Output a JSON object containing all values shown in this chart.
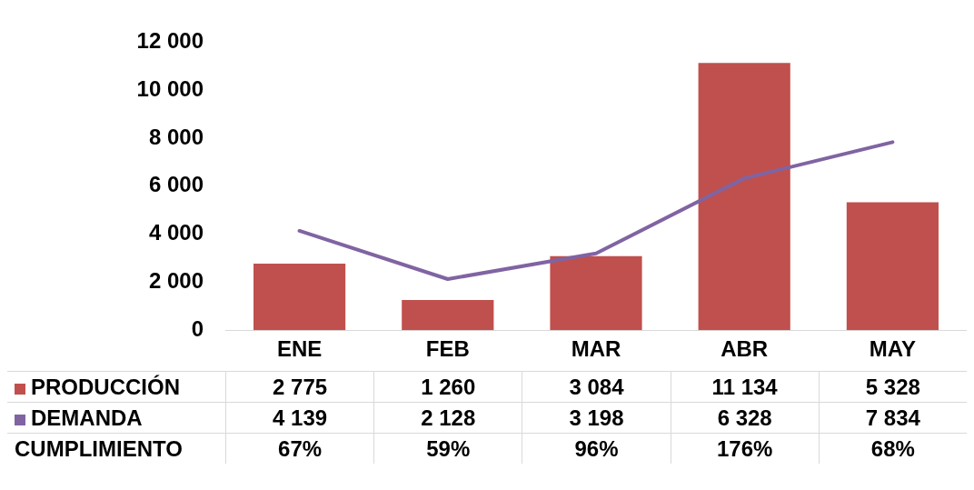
{
  "chart_data": {
    "type": "bar",
    "categories": [
      "ENE",
      "FEB",
      "MAR",
      "ABR",
      "MAY"
    ],
    "series": [
      {
        "name": "PRODUCCIÓN",
        "color": "#c0504d",
        "values": [
          2775,
          1260,
          3084,
          11134,
          5328
        ],
        "value_labels": [
          "2 775",
          "1 260",
          "3 084",
          "11 134",
          "5 328"
        ]
      },
      {
        "name": "DEMANDA",
        "type": "line",
        "color": "#8064a2",
        "values": [
          4139,
          2128,
          3198,
          6328,
          7834
        ],
        "value_labels": [
          "4 139",
          "2 128",
          "3 198",
          "6 328",
          "7 834"
        ]
      }
    ],
    "ylim": [
      0,
      12000
    ],
    "yticks": [
      {
        "value": 0,
        "label": "0"
      },
      {
        "value": 2000,
        "label": "2 000"
      },
      {
        "value": 4000,
        "label": "4 000"
      },
      {
        "value": 6000,
        "label": "6 000"
      },
      {
        "value": 8000,
        "label": "8 000"
      },
      {
        "value": 10000,
        "label": "10 000"
      },
      {
        "value": 12000,
        "label": "12 000"
      }
    ],
    "annotations": [
      "CUMPLIMIENTO",
      "67%",
      "59%",
      "96%",
      "176%",
      "68%"
    ],
    "grid": false,
    "legend": "bottom left",
    "marker": "none"
  }
}
